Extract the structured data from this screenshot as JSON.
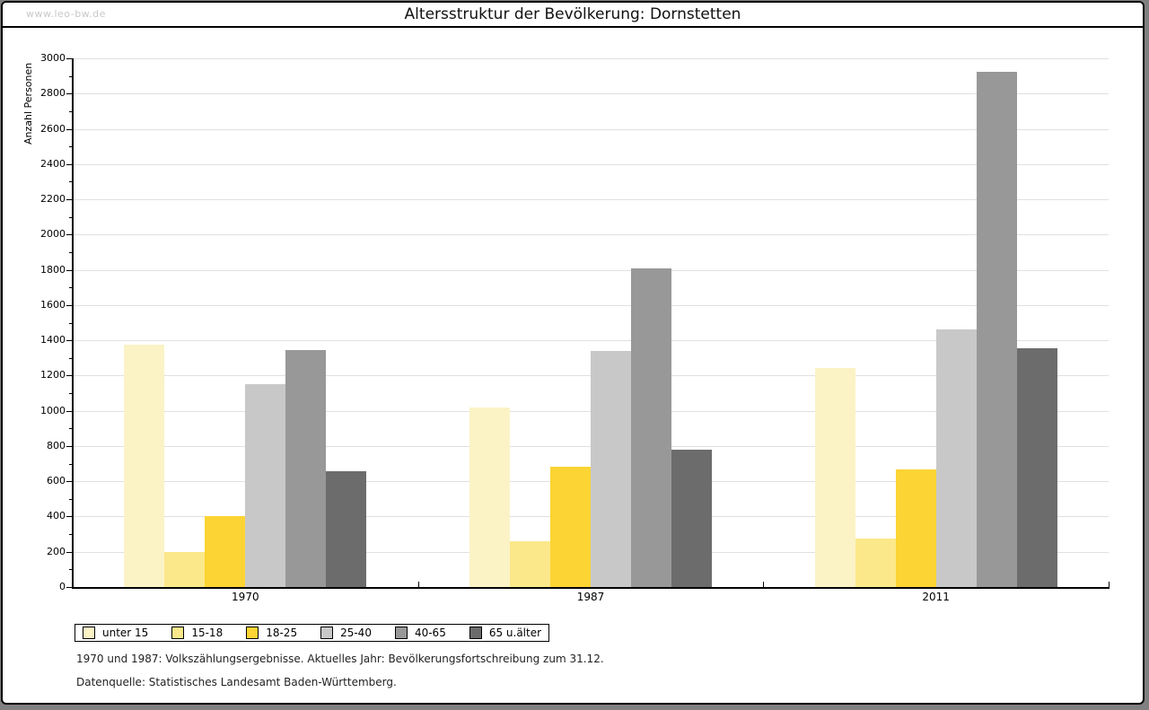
{
  "window": {
    "watermark": "www.leo-bw.de",
    "title": "Altersstruktur der Bevölkerung: Dornstetten"
  },
  "chart_data": {
    "type": "bar",
    "title": "Altersstruktur der Bevölkerung: Dornstetten",
    "xlabel": "",
    "ylabel": "Anzahl Personen",
    "ylim": [
      0,
      3000
    ],
    "ytick_step": 200,
    "yminor_step": 100,
    "grid": true,
    "legend_position": "bottom-left",
    "categories": [
      "1970",
      "1987",
      "2011"
    ],
    "series": [
      {
        "name": "unter 15",
        "color": "#FBF3C6",
        "values": [
          1375,
          1020,
          1245
        ]
      },
      {
        "name": "15-18",
        "color": "#FBE88A",
        "values": [
          200,
          260,
          275
        ]
      },
      {
        "name": "18-25",
        "color": "#FCD433",
        "values": [
          400,
          680,
          665
        ]
      },
      {
        "name": "25-40",
        "color": "#C8C8C8",
        "values": [
          1150,
          1340,
          1460
        ]
      },
      {
        "name": "40-65",
        "color": "#989898",
        "values": [
          1345,
          1810,
          2925
        ]
      },
      {
        "name": "65 u.älter",
        "color": "#6C6C6C",
        "values": [
          655,
          780,
          1355
        ]
      }
    ]
  },
  "footnotes": {
    "line1": "1970 und 1987: Volkszählungsergebnisse. Aktuelles Jahr: Bevölkerungsfortschreibung zum 31.12.",
    "line2": "Datenquelle: Statistisches Landesamt Baden-Württemberg."
  }
}
